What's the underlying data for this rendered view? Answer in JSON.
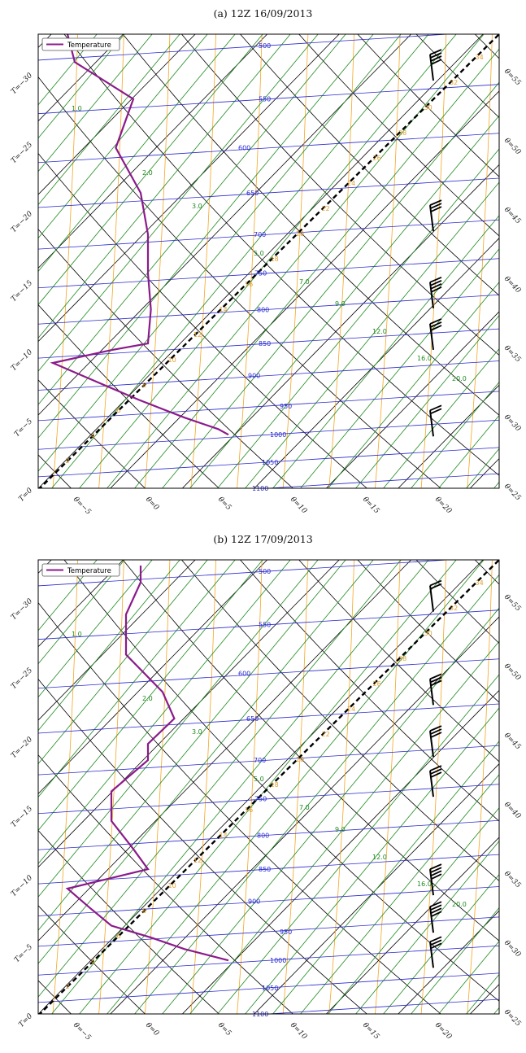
{
  "chart_data": [
    {
      "type": "line",
      "title": "(a) 12Z 16/09/2013",
      "legend": "Temperature",
      "legend_position": "top-left",
      "isobar_labels": [
        "500",
        "550",
        "600",
        "650",
        "700",
        "750",
        "800",
        "850",
        "900",
        "950",
        "1000",
        "1050",
        "1100"
      ],
      "mixing_ratio_labels": [
        "1.0",
        "2.0",
        "3.0",
        "5.0",
        "7.0",
        "9.0",
        "12.0",
        "16.0",
        "20.0"
      ],
      "left_axis_labels": [
        "T=0",
        "T=−5",
        "T=−10",
        "T=−15",
        "T=−20",
        "T=−25",
        "T=−30"
      ],
      "right_axis_labels": [
        "θ=25",
        "θ=30",
        "θ=35",
        "θ=40",
        "θ=45",
        "θ=50",
        "θ=55"
      ],
      "bottom_axis_labels": [
        "θ=−5",
        "θ=0",
        "θ=5",
        "θ=10",
        "θ=15",
        "θ=20"
      ],
      "temperature_series": {
        "name": "Temperature",
        "pressure": [
          1000,
          990,
          970,
          940,
          905,
          880,
          860,
          850,
          800,
          750,
          700,
          650,
          600,
          550,
          515,
          490
        ],
        "temperature": [
          4.5,
          3.8,
          1.5,
          -1.6,
          -5.0,
          -7.5,
          -3.5,
          -1.0,
          -0.8,
          -1.0,
          -1.0,
          -1.5,
          -3.2,
          -2.0,
          -6.0,
          -6.5
        ]
      },
      "wind_barbs": [
        {
          "pressure": 520,
          "speed_kt": 35
        },
        {
          "pressure": 680,
          "speed_kt": 30
        },
        {
          "pressure": 780,
          "speed_kt": 35
        },
        {
          "pressure": 840,
          "speed_kt": 30
        },
        {
          "pressure": 980,
          "speed_kt": 15
        }
      ]
    },
    {
      "type": "line",
      "title": "(b) 12Z 17/09/2013",
      "legend": "Temperature",
      "legend_position": "top-left",
      "isobar_labels": [
        "500",
        "550",
        "600",
        "650",
        "700",
        "750",
        "800",
        "850",
        "900",
        "950",
        "1000",
        "1050",
        "1100"
      ],
      "mixing_ratio_labels": [
        "1.0",
        "2.0",
        "3.0",
        "5.0",
        "7.0",
        "9.0",
        "12.0",
        "16.0",
        "20.0"
      ],
      "left_axis_labels": [
        "T=0",
        "T=−5",
        "T=−10",
        "T=−15",
        "T=−20",
        "T=−25",
        "T=−30"
      ],
      "right_axis_labels": [
        "θ=25",
        "θ=30",
        "θ=35",
        "θ=40",
        "θ=45",
        "θ=50",
        "θ=55"
      ],
      "bottom_axis_labels": [
        "θ=−5",
        "θ=0",
        "θ=5",
        "θ=10",
        "θ=15",
        "θ=20"
      ],
      "temperature_series": {
        "name": "Temperature",
        "pressure": [
          1000,
          980,
          960,
          940,
          910,
          880,
          850,
          820,
          780,
          740,
          700,
          680,
          650,
          620,
          580,
          540,
          510,
          495
        ],
        "temperature": [
          4.5,
          1.5,
          -0.8,
          -3.5,
          -5.0,
          -6.5,
          -1.0,
          -2.0,
          -3.5,
          -3.5,
          -1.0,
          -1.0,
          0.8,
          0.0,
          -2.5,
          -2.5,
          -1.5,
          -1.5
        ]
      },
      "wind_barbs": [
        {
          "pressure": 525,
          "speed_kt": 20
        },
        {
          "pressure": 620,
          "speed_kt": 30
        },
        {
          "pressure": 680,
          "speed_kt": 30
        },
        {
          "pressure": 730,
          "speed_kt": 30
        },
        {
          "pressure": 870,
          "speed_kt": 40
        },
        {
          "pressure": 930,
          "speed_kt": 40
        },
        {
          "pressure": 990,
          "speed_kt": 30
        }
      ]
    }
  ],
  "colors": {
    "isobar": "#2a2ad0",
    "dry_adiabat": "#000000",
    "isotherm": "#000000",
    "moist_adiabat": "#f5a623",
    "mixing_ratio": "#1f8a1f",
    "temperature": "#8b1a8b",
    "dewpoint_line": "#000000"
  }
}
